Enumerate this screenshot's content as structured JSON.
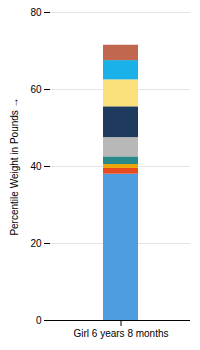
{
  "chart_data": {
    "type": "bar",
    "stacked": true,
    "categories": [
      "Girl 6 years 8 months"
    ],
    "series": [
      {
        "color": "#4d9de0",
        "values": [
          38.0
        ]
      },
      {
        "color": "#e84c1e",
        "values": [
          1.5
        ]
      },
      {
        "color": "#f0a500",
        "values": [
          1.0
        ]
      },
      {
        "color": "#2a8a8a",
        "values": [
          2.0
        ]
      },
      {
        "color": "#b8b8b8",
        "values": [
          5.0
        ]
      },
      {
        "color": "#1e3a5f",
        "values": [
          8.0
        ]
      },
      {
        "color": "#f9e07a",
        "values": [
          7.0
        ]
      },
      {
        "color": "#1ab0e8",
        "values": [
          5.0
        ]
      },
      {
        "color": "#c0674d",
        "values": [
          4.0
        ]
      }
    ],
    "ylabel": "Percentile Weight in Pounds",
    "ylim": [
      0,
      80
    ],
    "yticks": [
      0,
      20,
      40,
      60,
      80
    ],
    "grid": true
  }
}
